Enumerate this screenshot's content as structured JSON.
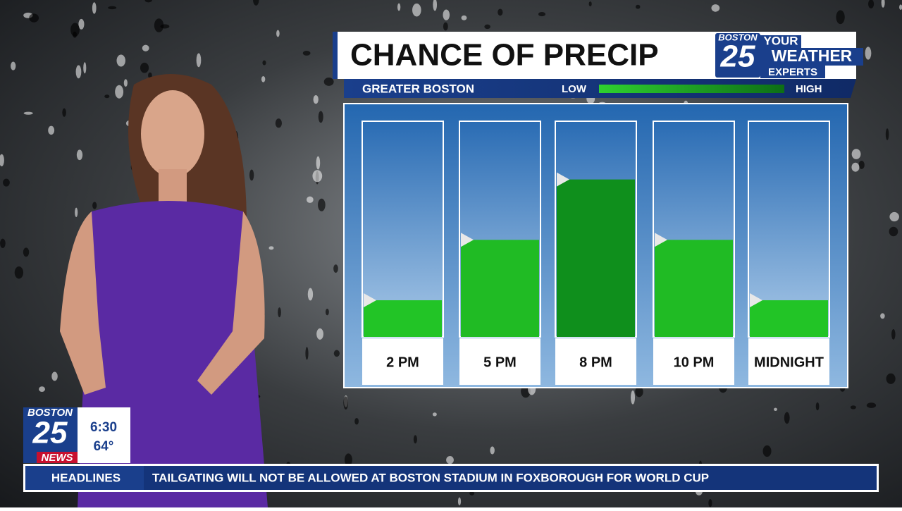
{
  "chart_data": {
    "type": "bar",
    "title": "CHANCE OF PRECIP",
    "subtitle": "GREATER BOSTON",
    "legend_low": "LOW",
    "legend_high": "HIGH",
    "categories": [
      "2 PM",
      "5 PM",
      "8 PM",
      "10 PM",
      "MIDNIGHT"
    ],
    "values": [
      17,
      45,
      73,
      45,
      17
    ],
    "colors": [
      "#22c426",
      "#20bb24",
      "#0f8f1c",
      "#20bb24",
      "#22c426"
    ],
    "ylim": [
      0,
      100
    ]
  },
  "logo": {
    "city": "BOSTON",
    "number": "25",
    "line1": "YOUR",
    "line2": "WEATHER",
    "line3": "EXPERTS"
  },
  "bug": {
    "city": "BOSTON",
    "number": "25",
    "brand": "NEWS",
    "time": "6:30",
    "temperature": "64°"
  },
  "ticker": {
    "label": "HEADLINES",
    "text": "TAILGATING WILL NOT BE ALLOWED AT BOSTON STADIUM IN FOXBOROUGH FOR WORLD CUP"
  }
}
